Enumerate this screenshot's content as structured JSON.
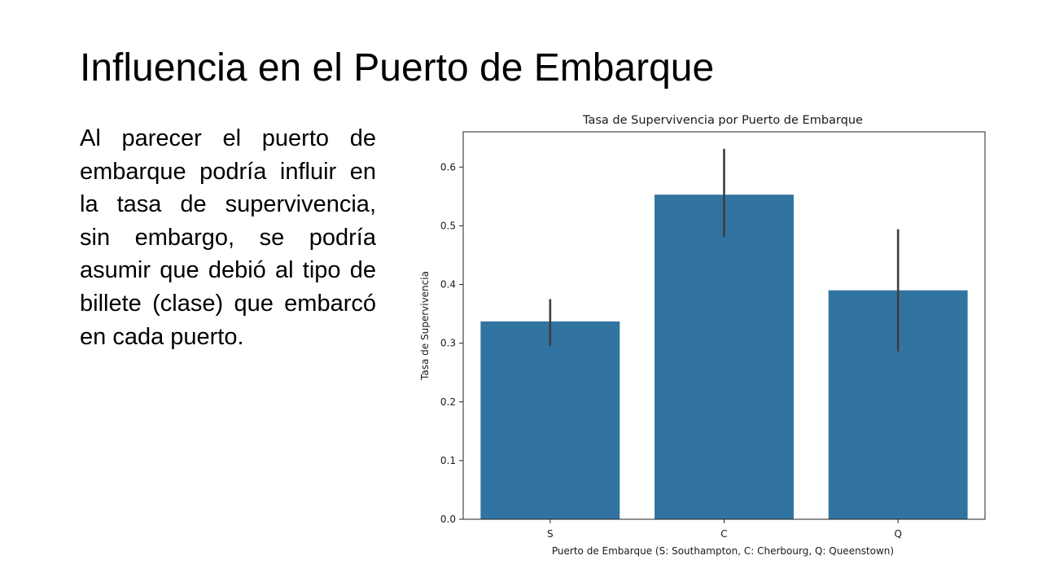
{
  "slide": {
    "title": "Influencia en el Puerto de Embarque",
    "body": "Al parecer el puerto de embarque podría influir en la tasa de supervivencia, sin embargo, se podría asumir que debió al tipo de billete (clase) que embarcó en cada puerto."
  },
  "chart_data": {
    "type": "bar",
    "title": "Tasa de Supervivencia por Puerto de Embarque",
    "xlabel": "Puerto de Embarque (S: Southampton, C: Cherbourg, Q: Queenstown)",
    "ylabel": "Tasa de Supervivencia",
    "categories": [
      "S",
      "C",
      "Q"
    ],
    "values": [
      0.337,
      0.553,
      0.39
    ],
    "error_low": [
      0.295,
      0.481,
      0.286
    ],
    "error_high": [
      0.375,
      0.631,
      0.494
    ],
    "ylim": [
      0,
      0.66
    ],
    "yticks": [
      0.0,
      0.1,
      0.2,
      0.3,
      0.4,
      0.5,
      0.6
    ],
    "ytick_labels": [
      "0.0",
      "0.1",
      "0.2",
      "0.3",
      "0.4",
      "0.5",
      "0.6"
    ],
    "grid": false,
    "legend": "none",
    "bar_color": "#3274a1",
    "errorbar_color": "#3d3d3d"
  }
}
